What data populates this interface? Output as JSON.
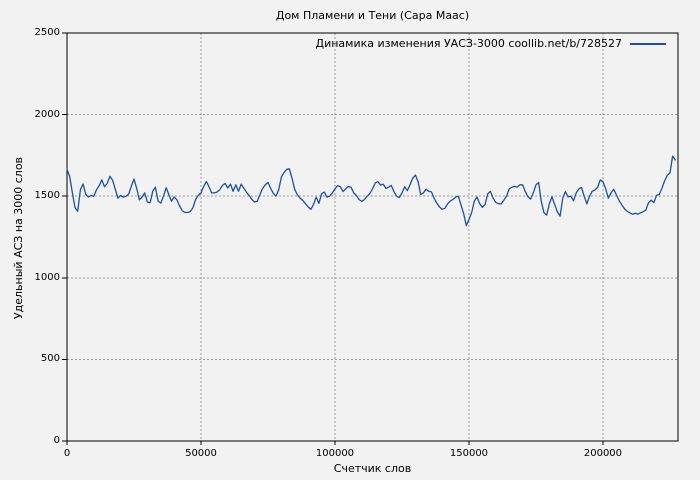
{
  "colors": {
    "background": "#f2f2f2",
    "axis": "#000000",
    "grid": "#999999",
    "series_line": "#1e4fa3",
    "text": "#000000"
  },
  "chart_data": {
    "type": "line",
    "title": "Дом Пламени и Тени (Сара Маас)",
    "xlabel": "Счетчик слов",
    "ylabel": "Удельный АСЗ на 3000 слов",
    "grid": true,
    "legend_position": "top-right-inside",
    "xlim": [
      0,
      228000
    ],
    "ylim": [
      0,
      2500
    ],
    "x_ticks": [
      0,
      50000,
      100000,
      150000,
      200000
    ],
    "y_ticks": [
      0,
      500,
      1000,
      1500,
      2000,
      2500
    ],
    "series": [
      {
        "name": "Динамика изменения УАСЗ-3000 coollib.net/b/728527",
        "color": "#1e4fa3",
        "x_unit": "words",
        "x_start": 0,
        "x_step": 1000,
        "values": [
          1665,
          1620,
          1520,
          1430,
          1408,
          1540,
          1575,
          1510,
          1495,
          1505,
          1500,
          1540,
          1565,
          1600,
          1558,
          1578,
          1622,
          1598,
          1545,
          1488,
          1505,
          1494,
          1500,
          1512,
          1560,
          1605,
          1548,
          1478,
          1495,
          1520,
          1464,
          1460,
          1532,
          1555,
          1470,
          1458,
          1500,
          1552,
          1510,
          1470,
          1496,
          1478,
          1440,
          1412,
          1400,
          1400,
          1406,
          1430,
          1480,
          1506,
          1520,
          1560,
          1590,
          1558,
          1520,
          1520,
          1526,
          1540,
          1566,
          1578,
          1550,
          1574,
          1530,
          1570,
          1530,
          1574,
          1548,
          1524,
          1504,
          1480,
          1464,
          1470,
          1510,
          1548,
          1570,
          1584,
          1548,
          1518,
          1500,
          1540,
          1618,
          1645,
          1665,
          1668,
          1608,
          1540,
          1508,
          1488,
          1474,
          1454,
          1434,
          1420,
          1450,
          1494,
          1456,
          1515,
          1525,
          1494,
          1500,
          1520,
          1545,
          1565,
          1558,
          1528,
          1545,
          1560,
          1554,
          1520,
          1504,
          1480,
          1468,
          1480,
          1500,
          1516,
          1545,
          1580,
          1590,
          1568,
          1574,
          1548,
          1556,
          1566,
          1528,
          1500,
          1492,
          1520,
          1558,
          1534,
          1570,
          1610,
          1630,
          1588,
          1510,
          1520,
          1542,
          1530,
          1526,
          1488,
          1458,
          1434,
          1420,
          1426,
          1452,
          1470,
          1480,
          1494,
          1500,
          1448,
          1395,
          1320,
          1358,
          1400,
          1470,
          1495,
          1454,
          1432,
          1450,
          1514,
          1530,
          1488,
          1462,
          1454,
          1452,
          1475,
          1500,
          1545,
          1555,
          1560,
          1556,
          1570,
          1570,
          1528,
          1497,
          1482,
          1520,
          1570,
          1584,
          1468,
          1398,
          1384,
          1455,
          1496,
          1448,
          1404,
          1378,
          1490,
          1528,
          1496,
          1500,
          1472,
          1520,
          1544,
          1554,
          1500,
          1453,
          1500,
          1530,
          1538,
          1554,
          1600,
          1588,
          1548,
          1488,
          1520,
          1542,
          1508,
          1474,
          1448,
          1424,
          1408,
          1398,
          1390,
          1395,
          1390,
          1398,
          1405,
          1415,
          1460,
          1476,
          1460,
          1506,
          1510,
          1548,
          1594,
          1628,
          1642,
          1746,
          1722
        ]
      }
    ]
  }
}
